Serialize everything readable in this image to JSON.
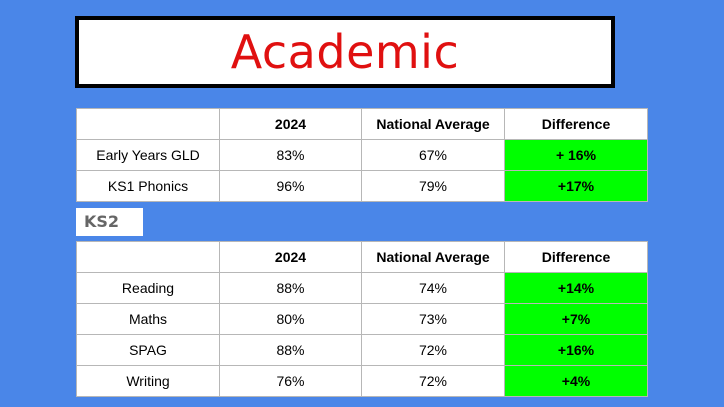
{
  "title": "Academic",
  "colors": {
    "background": "#4a86e8",
    "title_text": "#e01010",
    "difference_fill": "#00ff00"
  },
  "early_table": {
    "headers": [
      "",
      "2024",
      "National Average",
      "Difference"
    ],
    "rows": [
      {
        "label": "Early Years GLD",
        "year": "83%",
        "national": "67%",
        "difference": "+ 16%"
      },
      {
        "label": "KS1 Phonics",
        "year": "96%",
        "national": "79%",
        "difference": "+17%"
      }
    ]
  },
  "ks2_label": "KS2",
  "ks2_table": {
    "headers": [
      "",
      "2024",
      "National Average",
      "Difference"
    ],
    "rows": [
      {
        "label": "Reading",
        "year": "88%",
        "national": "74%",
        "difference": "+14%"
      },
      {
        "label": "Maths",
        "year": "80%",
        "national": "73%",
        "difference": "+7%"
      },
      {
        "label": "SPAG",
        "year": "88%",
        "national": "72%",
        "difference": "+16%"
      },
      {
        "label": "Writing",
        "year": "76%",
        "national": "72%",
        "difference": "+4%"
      }
    ]
  }
}
